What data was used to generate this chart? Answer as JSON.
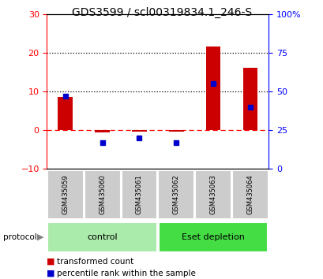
{
  "title": "GDS3599 / scl00319834.1_246-S",
  "samples": [
    "GSM435059",
    "GSM435060",
    "GSM435061",
    "GSM435062",
    "GSM435063",
    "GSM435064"
  ],
  "red_values": [
    8.5,
    -0.5,
    -0.3,
    -0.4,
    21.5,
    16.0
  ],
  "blue_values_pct": [
    47,
    17,
    20,
    17,
    55,
    40
  ],
  "ylim_left": [
    -10,
    30
  ],
  "ylim_right": [
    0,
    100
  ],
  "yticks_left": [
    -10,
    0,
    10,
    20,
    30
  ],
  "yticks_right": [
    0,
    25,
    50,
    75,
    100
  ],
  "ytick_right_labels": [
    "0",
    "25",
    "50",
    "75",
    "100%"
  ],
  "groups": [
    {
      "label": "control",
      "start": 0,
      "end": 3,
      "color": "#AAEAAA"
    },
    {
      "label": "Eset depletion",
      "start": 3,
      "end": 6,
      "color": "#44DD44"
    }
  ],
  "protocol_label": "protocol",
  "legend_items": [
    {
      "color": "#CC0000",
      "label": "transformed count"
    },
    {
      "color": "#0000CC",
      "label": "percentile rank within the sample"
    }
  ],
  "bg_color": "#FFFFFF",
  "bar_width": 0.4,
  "title_fontsize": 10,
  "axis_fontsize": 8,
  "legend_fontsize": 7.5
}
